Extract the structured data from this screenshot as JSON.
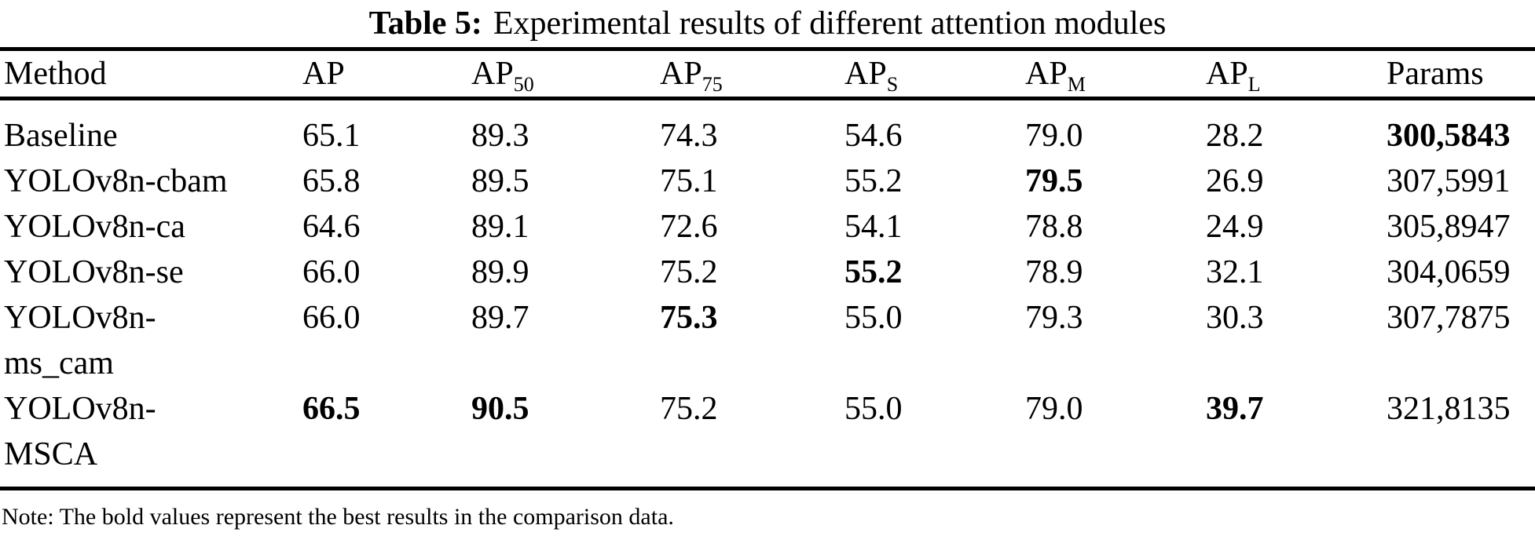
{
  "caption": {
    "label": "Table 5:",
    "text": "Experimental results of different attention modules"
  },
  "table": {
    "headers": [
      {
        "label": "Method",
        "sub": ""
      },
      {
        "label": "AP",
        "sub": ""
      },
      {
        "label": "AP",
        "sub": "50"
      },
      {
        "label": "AP",
        "sub": "75"
      },
      {
        "label": "AP",
        "sub": "S"
      },
      {
        "label": "AP",
        "sub": "M"
      },
      {
        "label": "AP",
        "sub": "L"
      },
      {
        "label": "Params",
        "sub": ""
      }
    ],
    "rows": [
      {
        "method": "Baseline",
        "values": [
          "65.1",
          "89.3",
          "74.3",
          "54.6",
          "79.0",
          "28.2",
          "300,5843"
        ],
        "bold": [
          false,
          false,
          false,
          false,
          false,
          false,
          true
        ]
      },
      {
        "method": "YOLOv8n-cbam",
        "values": [
          "65.8",
          "89.5",
          "75.1",
          "55.2",
          "79.5",
          "26.9",
          "307,5991"
        ],
        "bold": [
          false,
          false,
          false,
          false,
          true,
          false,
          false
        ]
      },
      {
        "method": "YOLOv8n-ca",
        "values": [
          "64.6",
          "89.1",
          "72.6",
          "54.1",
          "78.8",
          "24.9",
          "305,8947"
        ],
        "bold": [
          false,
          false,
          false,
          false,
          false,
          false,
          false
        ]
      },
      {
        "method": "YOLOv8n-se",
        "values": [
          "66.0",
          "89.9",
          "75.2",
          "55.2",
          "78.9",
          "32.1",
          "304,0659"
        ],
        "bold": [
          false,
          false,
          false,
          true,
          false,
          false,
          false
        ]
      },
      {
        "method": "YOLOv8n-\nms_cam",
        "values": [
          "66.0",
          "89.7",
          "75.3",
          "55.0",
          "79.3",
          "30.3",
          "307,7875"
        ],
        "bold": [
          false,
          false,
          true,
          false,
          false,
          false,
          false
        ]
      },
      {
        "method": "YOLOv8n-\nMSCA",
        "values": [
          "66.5",
          "90.5",
          "75.2",
          "55.0",
          "79.0",
          "39.7",
          "321,8135"
        ],
        "bold": [
          true,
          true,
          false,
          false,
          false,
          true,
          false
        ]
      }
    ]
  },
  "note": "Note: The bold values represent the best results in the comparison data.",
  "colors": {
    "text": "#000000",
    "background": "#ffffff"
  },
  "chart_data": {
    "type": "table",
    "title": "Table 5: Experimental results of different attention modules",
    "columns": [
      "Method",
      "AP",
      "AP50",
      "AP75",
      "APS",
      "APM",
      "APL",
      "Params"
    ],
    "rows": [
      [
        "Baseline",
        65.1,
        89.3,
        74.3,
        54.6,
        79.0,
        28.2,
        "300,5843"
      ],
      [
        "YOLOv8n-cbam",
        65.8,
        89.5,
        75.1,
        55.2,
        79.5,
        26.9,
        "307,5991"
      ],
      [
        "YOLOv8n-ca",
        64.6,
        89.1,
        72.6,
        54.1,
        78.8,
        24.9,
        "305,8947"
      ],
      [
        "YOLOv8n-se",
        66.0,
        89.9,
        75.2,
        55.2,
        78.9,
        32.1,
        "304,0659"
      ],
      [
        "YOLOv8n-ms_cam",
        66.0,
        89.7,
        75.3,
        55.0,
        79.3,
        30.3,
        "307,7875"
      ],
      [
        "YOLOv8n-MSCA",
        66.5,
        90.5,
        75.2,
        55.0,
        79.0,
        39.7,
        "321,8135"
      ]
    ],
    "bold_cells_note": "Bold values mark the best result per column"
  }
}
